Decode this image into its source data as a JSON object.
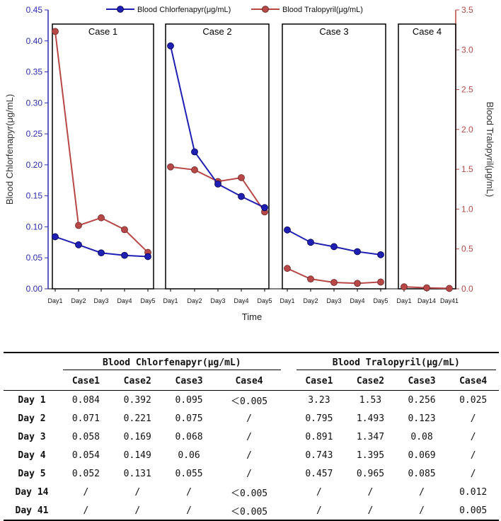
{
  "chart_data": {
    "type": "line",
    "title": "",
    "xlabel": "Time",
    "ylabel_left": "Blood Chlorfenapyr(μg/mL)",
    "ylabel_right": "Blood Tralopyril(μg/mL)",
    "ylim_left": [
      0,
      0.45
    ],
    "ylim_right": [
      0,
      3.5
    ],
    "yticks_left": [
      "0.00",
      "0.05",
      "0.10",
      "0.15",
      "0.20",
      "0.25",
      "0.30",
      "0.35",
      "0.40",
      "0.45"
    ],
    "yticks_right": [
      "0.0",
      "0.5",
      "1.0",
      "1.5",
      "2.0",
      "2.5",
      "3.0",
      "3.5"
    ],
    "legend": [
      {
        "name": "Blood Chlorfenapyr(μg/mL)",
        "color": "#1f1fb4"
      },
      {
        "name": "Blood Tralopyril(μg/mL)",
        "color": "#b84848"
      }
    ],
    "left_axis_color": "#2b2bb0",
    "right_axis_color": "#b84848",
    "panels": [
      {
        "title": "Case 1",
        "x": [
          "Day1",
          "Day2",
          "Day3",
          "Day4",
          "Day5"
        ],
        "chlorfenapyr": [
          0.084,
          0.071,
          0.058,
          0.054,
          0.052
        ],
        "tralopyril": [
          3.23,
          0.795,
          0.891,
          0.743,
          0.457
        ]
      },
      {
        "title": "Case 2",
        "x": [
          "Day1",
          "Day2",
          "Day3",
          "Day4",
          "Day5"
        ],
        "chlorfenapyr": [
          0.392,
          0.221,
          0.169,
          0.149,
          0.131
        ],
        "tralopyril": [
          1.53,
          1.493,
          1.347,
          1.395,
          0.965
        ]
      },
      {
        "title": "Case 3",
        "x": [
          "Day1",
          "Day2",
          "Day3",
          "Day4",
          "Day5"
        ],
        "chlorfenapyr": [
          0.095,
          0.075,
          0.068,
          0.06,
          0.055
        ],
        "tralopyril": [
          0.256,
          0.123,
          0.08,
          0.069,
          0.085
        ]
      },
      {
        "title": "Case 4",
        "x": [
          "Day1",
          "Day14",
          "Day41"
        ],
        "chlorfenapyr": [],
        "tralopyril": [
          0.025,
          0.012,
          0.005
        ]
      }
    ]
  },
  "table": {
    "group_headers": [
      "Blood Chlorfenapyr(μg/mL)",
      "Blood Tralopyril(μg/mL)"
    ],
    "col_headers": [
      "Case1",
      "Case2",
      "Case3",
      "Case4"
    ],
    "rows": [
      {
        "label": "Day 1",
        "chl": [
          "0.084",
          "0.392",
          "0.095",
          "＜0.005"
        ],
        "tra": [
          "3.23",
          "1.53",
          "0.256",
          "0.025"
        ]
      },
      {
        "label": "Day 2",
        "chl": [
          "0.071",
          "0.221",
          "0.075",
          "/"
        ],
        "tra": [
          "0.795",
          "1.493",
          "0.123",
          "/"
        ]
      },
      {
        "label": "Day 3",
        "chl": [
          "0.058",
          "0.169",
          "0.068",
          "/"
        ],
        "tra": [
          "0.891",
          "1.347",
          "0.08",
          "/"
        ]
      },
      {
        "label": "Day 4",
        "chl": [
          "0.054",
          "0.149",
          "0.06",
          "/"
        ],
        "tra": [
          "0.743",
          "1.395",
          "0.069",
          "/"
        ]
      },
      {
        "label": "Day 5",
        "chl": [
          "0.052",
          "0.131",
          "0.055",
          "/"
        ],
        "tra": [
          "0.457",
          "0.965",
          "0.085",
          "/"
        ]
      },
      {
        "label": "Day 14",
        "chl": [
          "/",
          "/",
          "/",
          "＜0.005"
        ],
        "tra": [
          "/",
          "/",
          "/",
          "0.012"
        ]
      },
      {
        "label": "Day 41",
        "chl": [
          "/",
          "/",
          "/",
          "＜0.005"
        ],
        "tra": [
          "/",
          "/",
          "/",
          "0.005"
        ]
      }
    ]
  }
}
